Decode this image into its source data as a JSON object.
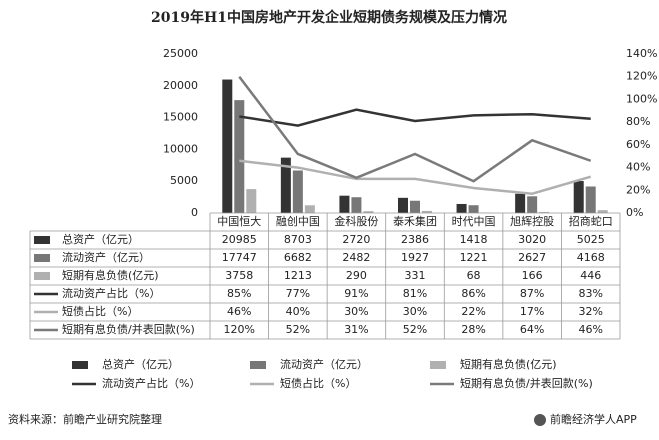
{
  "chart_data": {
    "type": "bar",
    "title": "2019年H1中国房地产开发企业短期债务规模及压力情况",
    "categories": [
      "中国恒大",
      "融创中国",
      "金科股份",
      "泰禾集团",
      "时代中国",
      "旭辉控股",
      "招商蛇口"
    ],
    "series": [
      {
        "name": "总资产（亿元）",
        "type": "bar",
        "color": "#333333",
        "values": [
          20985,
          8703,
          2720,
          2386,
          1418,
          3020,
          5025
        ]
      },
      {
        "name": "流动资产（亿元）",
        "type": "bar",
        "color": "#777777",
        "values": [
          17747,
          6682,
          2482,
          1927,
          1221,
          2627,
          4168
        ]
      },
      {
        "name": "短期有息负债(亿元)",
        "type": "bar",
        "color": "#b0b0b0",
        "values": [
          3758,
          1213,
          290,
          331,
          68,
          166,
          446
        ]
      },
      {
        "name": "流动资产占比（%）",
        "type": "line",
        "axis": "y2",
        "color": "#333333",
        "values": [
          85,
          77,
          91,
          81,
          86,
          87,
          83
        ],
        "value_labels": [
          "85%",
          "77%",
          "91%",
          "81%",
          "86%",
          "87%",
          "83%"
        ]
      },
      {
        "name": "短债占比（%）",
        "type": "line",
        "axis": "y2",
        "color": "#b0b0b0",
        "values": [
          46,
          40,
          30,
          30,
          22,
          17,
          32
        ],
        "value_labels": [
          "46%",
          "40%",
          "30%",
          "30%",
          "22%",
          "17%",
          "32%"
        ]
      },
      {
        "name": "短期有息负债/并表回款(%)",
        "type": "line",
        "axis": "y2",
        "color": "#7a7a7a",
        "values": [
          120,
          52,
          31,
          52,
          28,
          64,
          46
        ],
        "value_labels": [
          "120%",
          "52%",
          "31%",
          "52%",
          "28%",
          "64%",
          "46%"
        ]
      }
    ],
    "ylim": [
      0,
      25000
    ],
    "yticks": [
      0,
      5000,
      10000,
      15000,
      20000,
      25000
    ],
    "y2lim": [
      0,
      140
    ],
    "y2ticks": [
      {
        "value": 0,
        "label": "0%"
      },
      {
        "value": 20,
        "label": "20%"
      },
      {
        "value": 40,
        "label": "40%"
      },
      {
        "value": 60,
        "label": "60%"
      },
      {
        "value": 80,
        "label": "80%"
      },
      {
        "value": 100,
        "label": "100%"
      },
      {
        "value": 120,
        "label": "120%"
      },
      {
        "value": 140,
        "label": "140%"
      }
    ],
    "source": "资料来源：前瞻产业研究院整理",
    "brand": "前瞻经济学人APP"
  }
}
